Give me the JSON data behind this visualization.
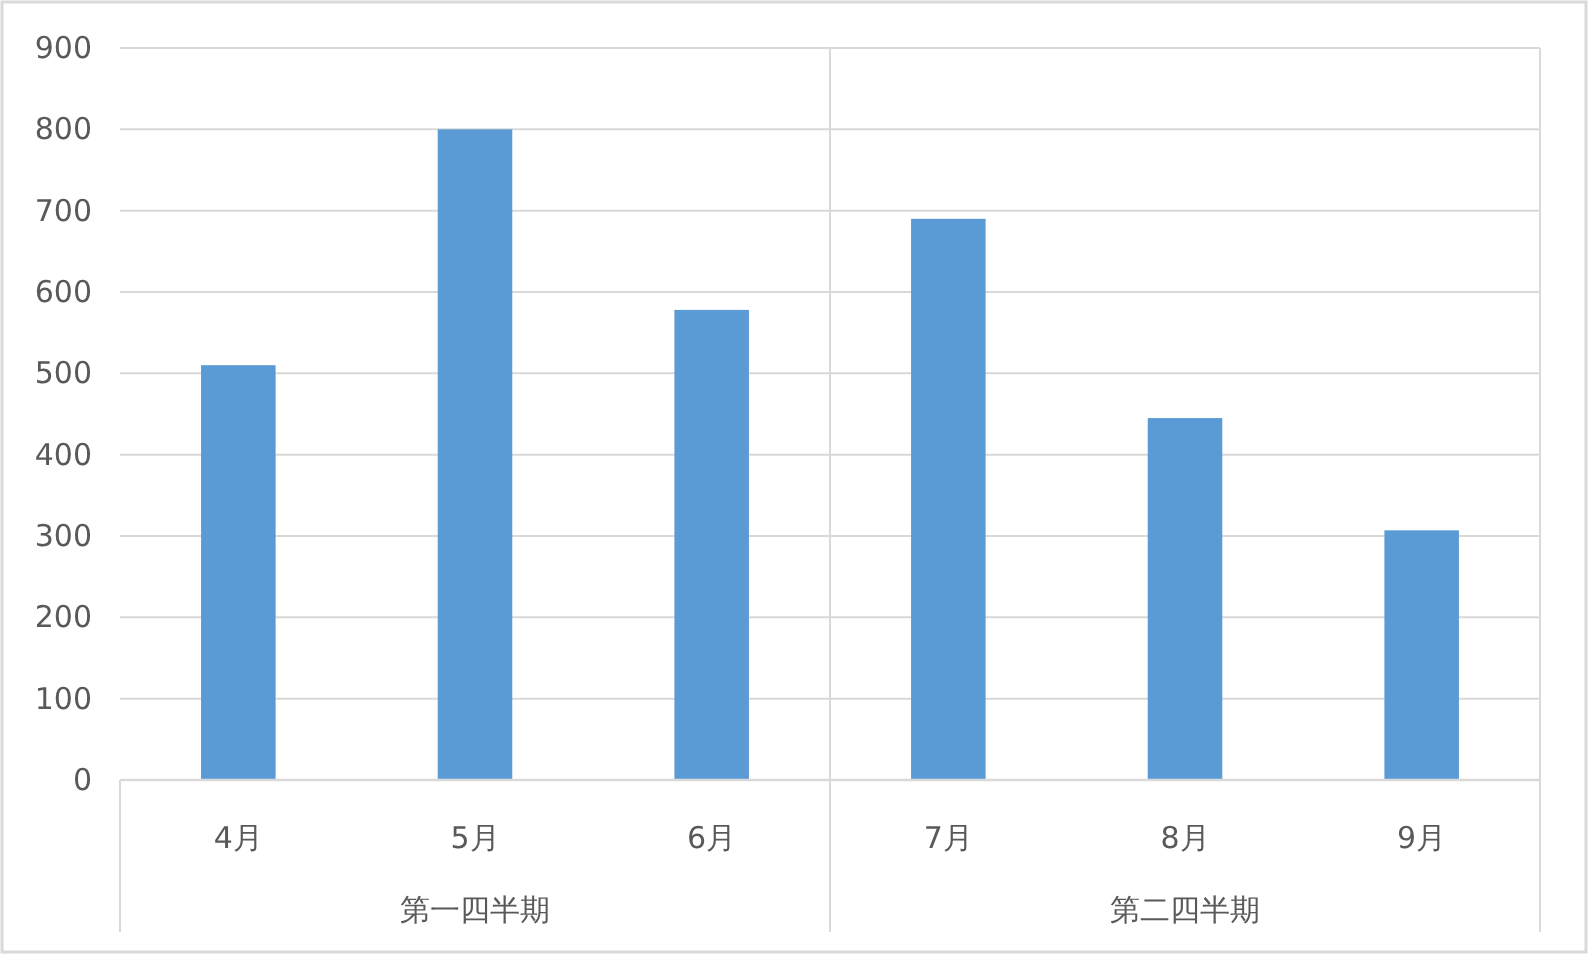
{
  "chart_data": {
    "type": "bar",
    "categories": [
      "4月",
      "5月",
      "6月",
      "7月",
      "8月",
      "9月"
    ],
    "values": [
      510,
      800,
      578,
      690,
      445,
      307
    ],
    "color": "#5b9bd5",
    "ylim": [
      0,
      900
    ],
    "yticks": [
      0,
      100,
      200,
      300,
      400,
      500,
      600,
      700,
      800,
      900
    ],
    "grid": "y",
    "annotations": [
      "第一四半期",
      "第二四半期"
    ]
  }
}
